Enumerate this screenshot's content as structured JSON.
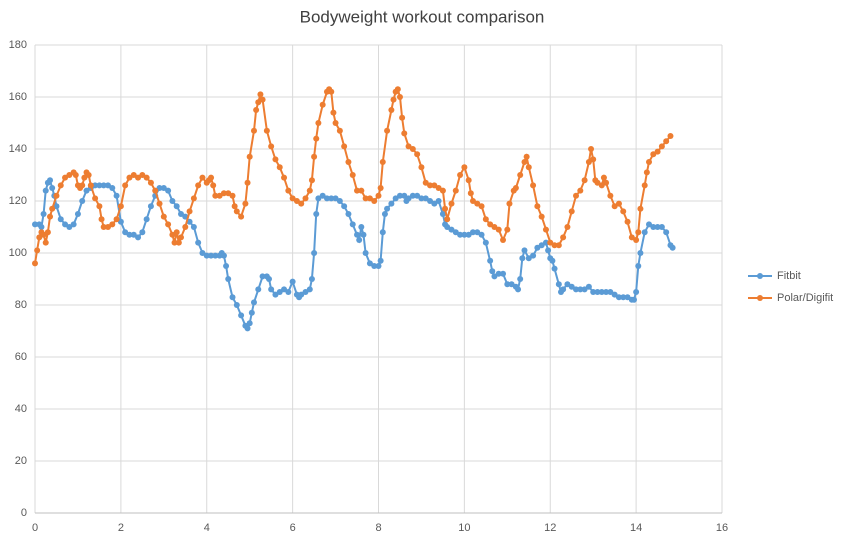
{
  "chart_data": {
    "type": "line",
    "title": "Bodyweight workout comparison",
    "xlim": [
      0,
      16
    ],
    "xticks": [
      0,
      2,
      4,
      6,
      8,
      10,
      12,
      14,
      16
    ],
    "ylim": [
      0,
      180
    ],
    "yticks": [
      0,
      20,
      40,
      60,
      80,
      100,
      120,
      140,
      160,
      180
    ],
    "grid": true,
    "legend": "right",
    "series": [
      {
        "name": "Fitbit",
        "color": "#5b9bd5",
        "x": [
          0.0,
          0.1,
          0.15,
          0.2,
          0.25,
          0.3,
          0.35,
          0.4,
          0.45,
          0.5,
          0.6,
          0.7,
          0.8,
          0.9,
          1.0,
          1.1,
          1.2,
          1.3,
          1.4,
          1.5,
          1.6,
          1.7,
          1.8,
          1.9,
          2.0,
          2.1,
          2.2,
          2.3,
          2.4,
          2.5,
          2.6,
          2.7,
          2.8,
          2.9,
          3.0,
          3.1,
          3.2,
          3.3,
          3.4,
          3.5,
          3.6,
          3.7,
          3.8,
          3.9,
          4.0,
          4.1,
          4.2,
          4.3,
          4.35,
          4.4,
          4.45,
          4.5,
          4.6,
          4.7,
          4.8,
          4.9,
          4.95,
          5.0,
          5.05,
          5.1,
          5.2,
          5.3,
          5.4,
          5.45,
          5.5,
          5.6,
          5.7,
          5.8,
          5.9,
          6.0,
          6.1,
          6.15,
          6.2,
          6.3,
          6.4,
          6.45,
          6.5,
          6.55,
          6.6,
          6.7,
          6.8,
          6.9,
          7.0,
          7.1,
          7.2,
          7.3,
          7.4,
          7.5,
          7.55,
          7.6,
          7.65,
          7.7,
          7.8,
          7.9,
          8.0,
          8.05,
          8.1,
          8.15,
          8.2,
          8.3,
          8.4,
          8.5,
          8.6,
          8.65,
          8.7,
          8.8,
          8.9,
          9.0,
          9.1,
          9.2,
          9.3,
          9.4,
          9.5,
          9.55,
          9.6,
          9.7,
          9.8,
          9.9,
          10.0,
          10.1,
          10.2,
          10.3,
          10.4,
          10.5,
          10.6,
          10.65,
          10.7,
          10.8,
          10.9,
          11.0,
          11.1,
          11.2,
          11.25,
          11.3,
          11.35,
          11.4,
          11.5,
          11.6,
          11.7,
          11.8,
          11.9,
          11.95,
          12.0,
          12.05,
          12.1,
          12.2,
          12.25,
          12.3,
          12.4,
          12.5,
          12.6,
          12.7,
          12.8,
          12.9,
          13.0,
          13.1,
          13.2,
          13.3,
          13.4,
          13.5,
          13.6,
          13.7,
          13.8,
          13.9,
          13.95,
          14.0,
          14.05,
          14.1,
          14.2,
          14.3,
          14.4,
          14.5,
          14.6,
          14.7,
          14.8,
          14.85
        ],
        "values": [
          111,
          111,
          110,
          115,
          124,
          127,
          128,
          125,
          122,
          118,
          113,
          111,
          110,
          111,
          115,
          120,
          124,
          125,
          126,
          126,
          126,
          126,
          125,
          122,
          112,
          108,
          107,
          107,
          106,
          108,
          113,
          118,
          122,
          125,
          125,
          124,
          120,
          118,
          115,
          114,
          112,
          110,
          104,
          100,
          99,
          99,
          99,
          99,
          100,
          99,
          95,
          90,
          83,
          80,
          76,
          72,
          71,
          73,
          77,
          81,
          86,
          91,
          91,
          90,
          86,
          84,
          85,
          86,
          85,
          89,
          84,
          83,
          84,
          85,
          86,
          90,
          100,
          115,
          121,
          122,
          121,
          121,
          121,
          120,
          118,
          115,
          111,
          107,
          105,
          110,
          107,
          100,
          96,
          95,
          95,
          97,
          108,
          115,
          117,
          119,
          121,
          122,
          122,
          120,
          121,
          122,
          122,
          121,
          121,
          120,
          119,
          120,
          115,
          111,
          110,
          109,
          108,
          107,
          107,
          107,
          108,
          108,
          107,
          104,
          97,
          93,
          91,
          92,
          92,
          88,
          88,
          87,
          86,
          90,
          98,
          101,
          98,
          99,
          102,
          103,
          104,
          101,
          98,
          97,
          94,
          88,
          85,
          86,
          88,
          87,
          86,
          86,
          86,
          87,
          85,
          85,
          85,
          85,
          85,
          84,
          83,
          83,
          83,
          82,
          82,
          85,
          95,
          100,
          108,
          111,
          110,
          110,
          110,
          108,
          103,
          102
        ]
      },
      {
        "name": "Polar/Digifit",
        "color": "#ed7d31",
        "x": [
          0.0,
          0.05,
          0.1,
          0.15,
          0.2,
          0.25,
          0.3,
          0.35,
          0.4,
          0.5,
          0.6,
          0.7,
          0.8,
          0.9,
          0.95,
          1.0,
          1.05,
          1.1,
          1.15,
          1.2,
          1.25,
          1.3,
          1.4,
          1.5,
          1.55,
          1.6,
          1.7,
          1.8,
          1.9,
          2.0,
          2.1,
          2.2,
          2.3,
          2.4,
          2.5,
          2.6,
          2.7,
          2.8,
          2.9,
          3.0,
          3.1,
          3.2,
          3.25,
          3.3,
          3.35,
          3.4,
          3.5,
          3.6,
          3.7,
          3.8,
          3.9,
          4.0,
          4.05,
          4.1,
          4.15,
          4.2,
          4.3,
          4.4,
          4.5,
          4.6,
          4.65,
          4.7,
          4.8,
          4.9,
          4.95,
          5.0,
          5.1,
          5.15,
          5.2,
          5.25,
          5.3,
          5.4,
          5.5,
          5.6,
          5.7,
          5.8,
          5.9,
          6.0,
          6.1,
          6.2,
          6.3,
          6.4,
          6.45,
          6.5,
          6.55,
          6.6,
          6.7,
          6.8,
          6.85,
          6.9,
          6.95,
          7.0,
          7.1,
          7.2,
          7.3,
          7.4,
          7.5,
          7.6,
          7.7,
          7.8,
          7.9,
          8.0,
          8.05,
          8.1,
          8.2,
          8.3,
          8.35,
          8.4,
          8.45,
          8.5,
          8.55,
          8.6,
          8.7,
          8.8,
          8.9,
          9.0,
          9.1,
          9.2,
          9.3,
          9.4,
          9.5,
          9.55,
          9.6,
          9.7,
          9.8,
          9.9,
          10.0,
          10.1,
          10.15,
          10.2,
          10.3,
          10.4,
          10.5,
          10.6,
          10.7,
          10.8,
          10.9,
          11.0,
          11.05,
          11.15,
          11.2,
          11.3,
          11.4,
          11.45,
          11.5,
          11.6,
          11.7,
          11.8,
          11.9,
          12.0,
          12.1,
          12.2,
          12.3,
          12.4,
          12.5,
          12.6,
          12.7,
          12.8,
          12.9,
          12.95,
          13.0,
          13.05,
          13.1,
          13.2,
          13.25,
          13.3,
          13.4,
          13.5,
          13.6,
          13.7,
          13.8,
          13.9,
          14.0,
          14.05,
          14.1,
          14.2,
          14.25,
          14.3,
          14.4,
          14.5,
          14.6,
          14.7,
          14.8
        ],
        "values": [
          96,
          101,
          106,
          108,
          107,
          104,
          108,
          114,
          117,
          122,
          126,
          129,
          130,
          131,
          130,
          126,
          125,
          126,
          129,
          131,
          130,
          126,
          121,
          118,
          113,
          110,
          110,
          111,
          113,
          118,
          126,
          129,
          130,
          129,
          130,
          129,
          127,
          124,
          119,
          114,
          111,
          107,
          104,
          108,
          104,
          106,
          110,
          116,
          121,
          126,
          129,
          127,
          128,
          129,
          126,
          122,
          122,
          123,
          123,
          122,
          118,
          116,
          114,
          119,
          127,
          137,
          147,
          155,
          158,
          161,
          159,
          147,
          141,
          136,
          133,
          129,
          124,
          121,
          120,
          119,
          121,
          124,
          128,
          137,
          144,
          150,
          157,
          162,
          163,
          162,
          154,
          150,
          147,
          141,
          135,
          130,
          124,
          124,
          121,
          121,
          120,
          122,
          125,
          135,
          147,
          155,
          159,
          162,
          163,
          160,
          152,
          146,
          141,
          140,
          138,
          133,
          127,
          126,
          126,
          125,
          124,
          117,
          113,
          119,
          124,
          130,
          133,
          128,
          123,
          120,
          119,
          118,
          113,
          111,
          110,
          109,
          105,
          109,
          119,
          124,
          125,
          130,
          135,
          137,
          133,
          126,
          118,
          114,
          109,
          104,
          103,
          103,
          106,
          110,
          116,
          122,
          124,
          128,
          135,
          140,
          136,
          128,
          127,
          126,
          129,
          127,
          122,
          118,
          119,
          116,
          112,
          106,
          105,
          108,
          117,
          126,
          131,
          135,
          138,
          139,
          141,
          143,
          145
        ]
      }
    ]
  }
}
